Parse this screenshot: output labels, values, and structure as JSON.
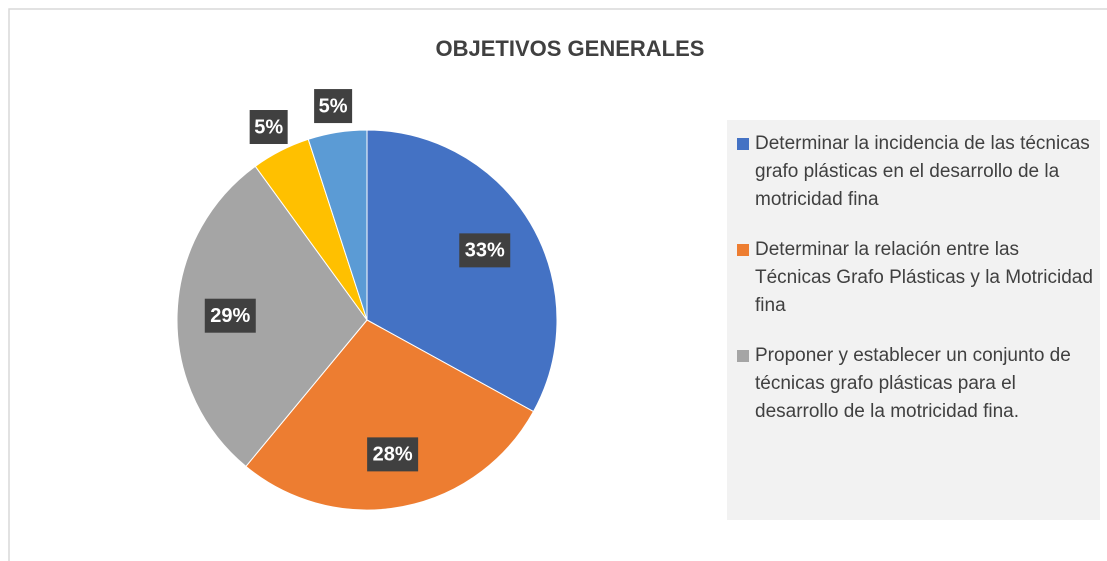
{
  "chart_data": {
    "type": "pie",
    "title": "OBJETIVOS GENERALES",
    "categories": [
      "Determinar la incidencia de las técnicas grafo plásticas en el desarrollo de la motricidad fina",
      "Determinar la relación entre las Técnicas Grafo Plásticas y la Motricidad fina",
      "Proponer y establecer un conjunto de técnicas grafo plásticas para el desarrollo de la motricidad fina.",
      null,
      null
    ],
    "values": [
      33,
      28,
      29,
      5,
      5
    ],
    "value_labels": [
      "33%",
      "28%",
      "29%",
      "5%",
      "5%"
    ],
    "colors": [
      "#4472c4",
      "#ed7d31",
      "#a5a5a5",
      "#ffc000",
      "#5b9bd5"
    ],
    "legend": "right"
  }
}
